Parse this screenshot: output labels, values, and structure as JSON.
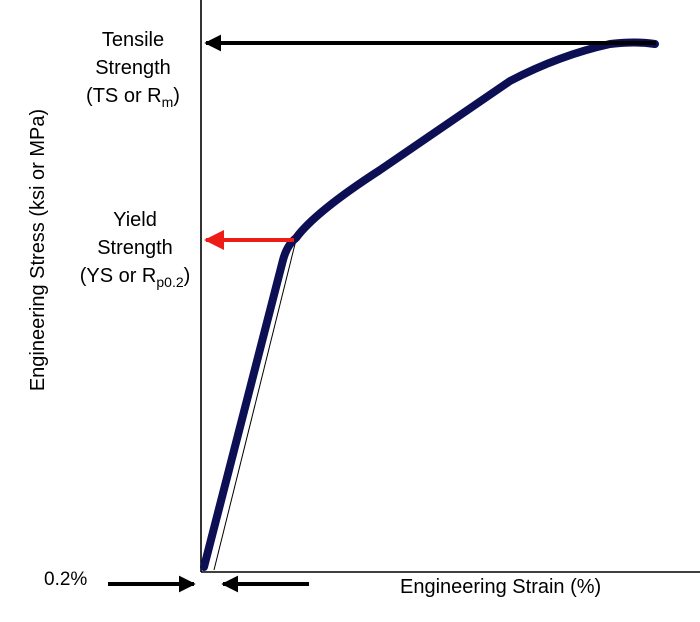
{
  "chart_data": {
    "type": "line",
    "xlabel": "Engineering Strain (%)",
    "ylabel": "Engineering Stress (ksi or MPa)",
    "annotations": {
      "tensile_strength": {
        "line1": "Tensile",
        "line2": "Strength",
        "line3_prefix": "(TS or R",
        "line3_sub": "m",
        "line3_suffix": ")"
      },
      "yield_strength": {
        "line1": "Yield",
        "line2": "Strength",
        "line3_prefix": "(YS or R",
        "line3_sub": "p0.2",
        "line3_suffix": ")"
      },
      "offset": "0.2%"
    },
    "colors": {
      "curve": "#0d0f55",
      "yield_arrow": "#ee1c16",
      "tensile_arrow": "#000000",
      "axes": "#000000"
    }
  }
}
